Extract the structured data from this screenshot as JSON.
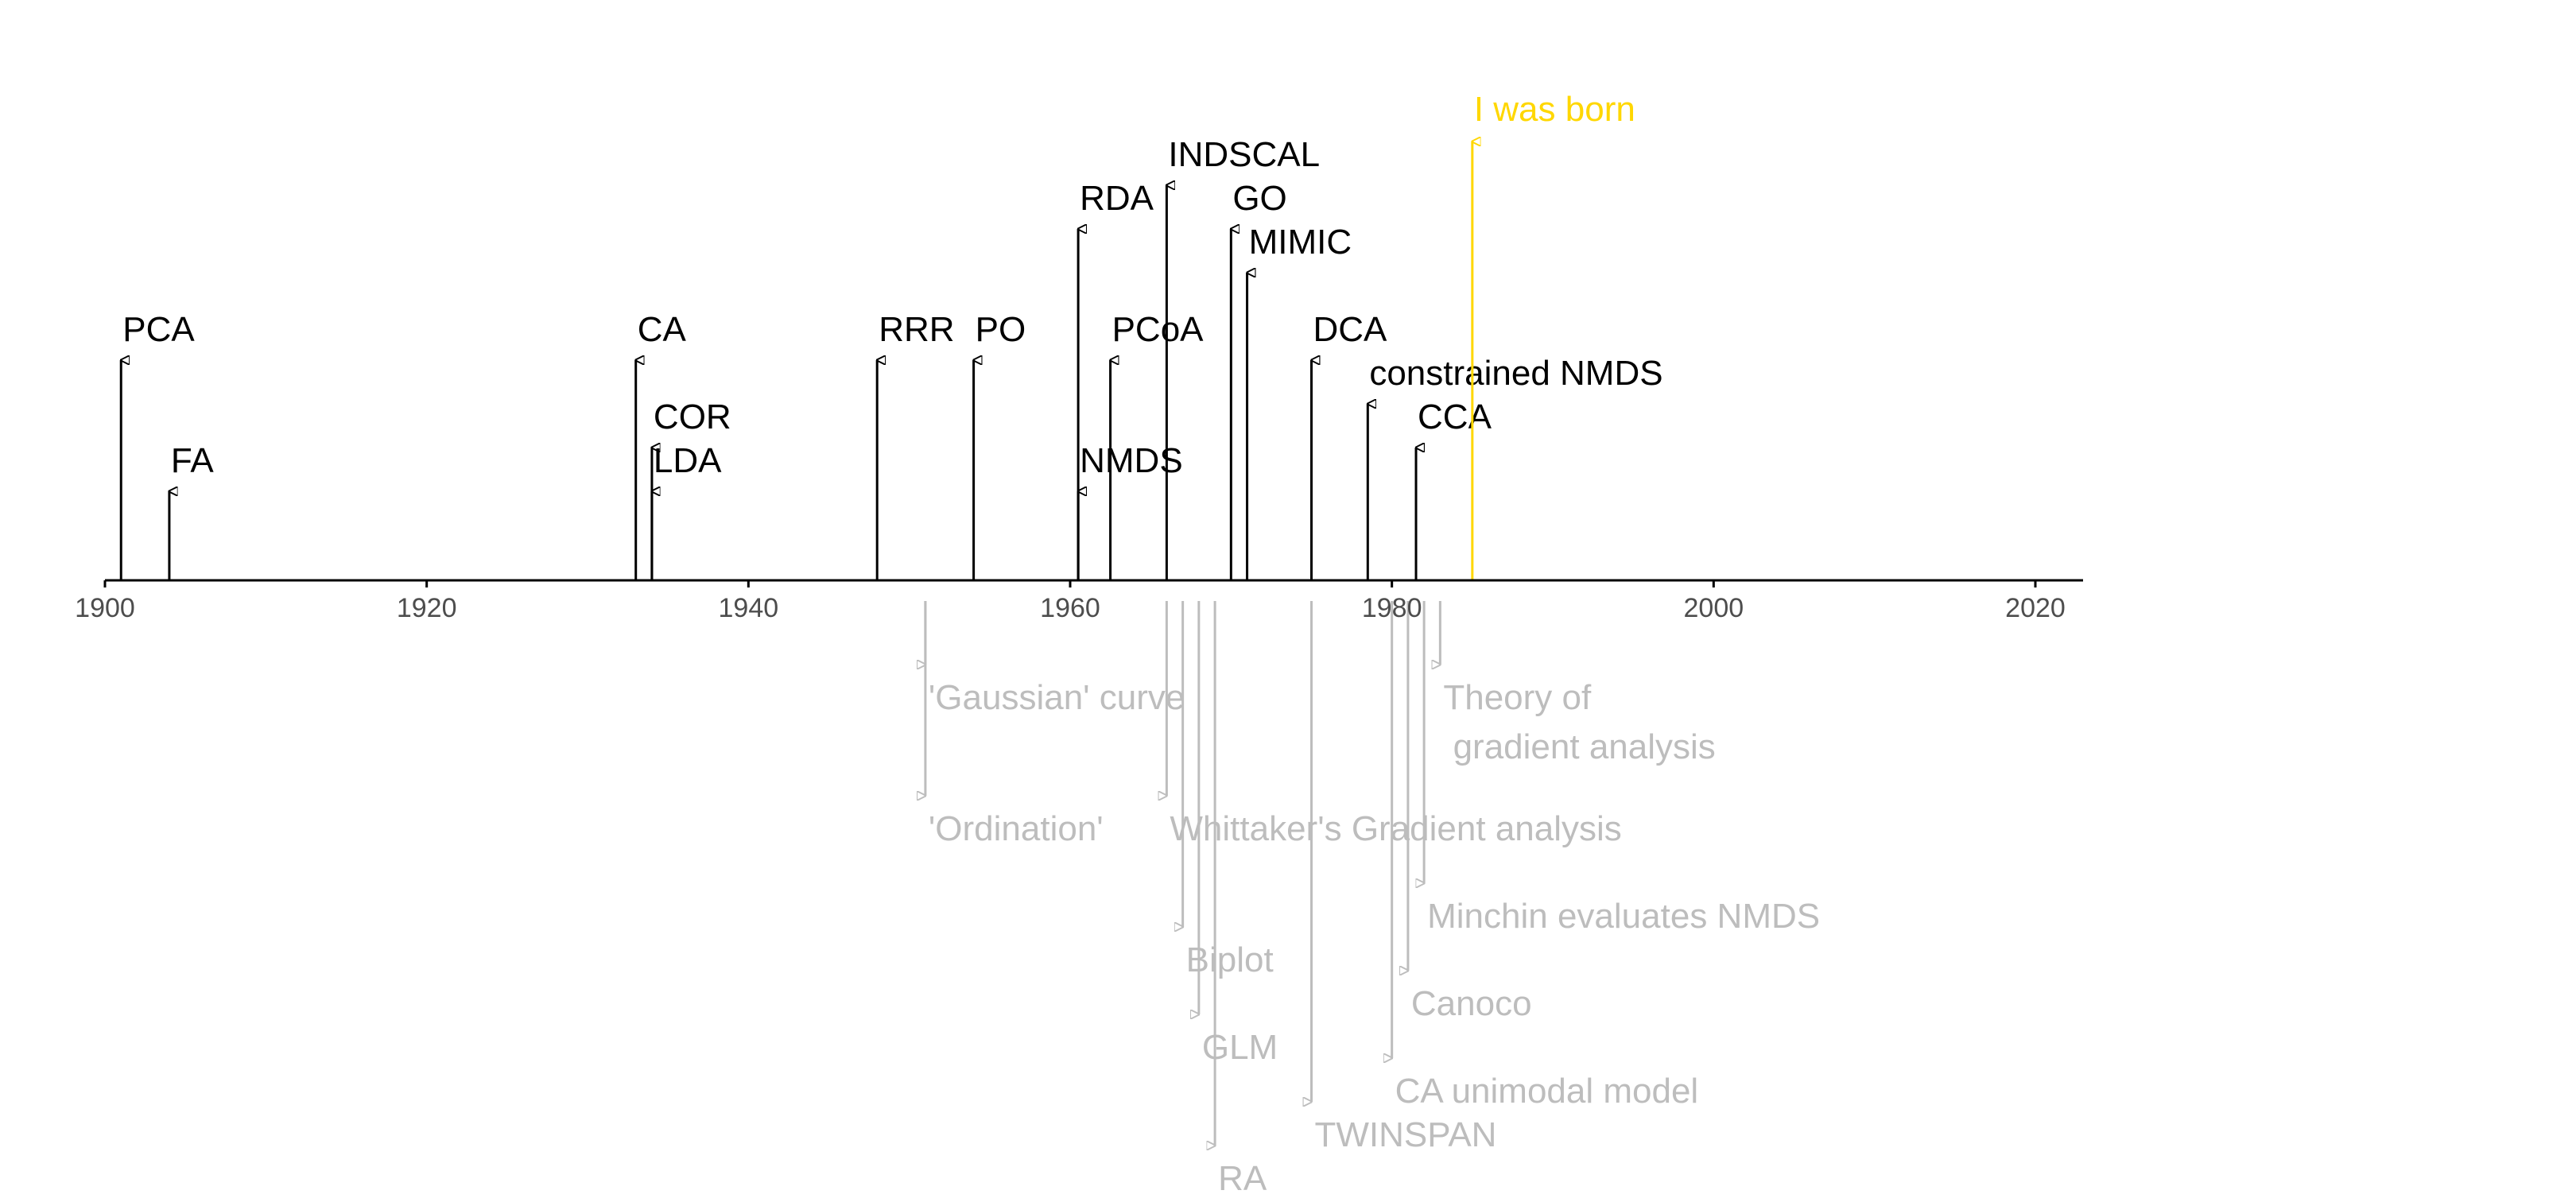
{
  "chart_data": {
    "type": "timeline",
    "x_range": [
      1898.5,
      2023
    ],
    "x_ticks": [
      1900,
      1920,
      1940,
      1960,
      1980,
      2000,
      2020
    ],
    "colors": {
      "methods": "#000000",
      "events": "#bdbdbd",
      "highlight": "#ffd700",
      "axis": "#000000",
      "tick_labels": "#4d4d4d"
    },
    "methods": [
      {
        "label": "PCA",
        "year": 1901,
        "level": 5
      },
      {
        "label": "FA",
        "year": 1904,
        "level": 2
      },
      {
        "label": "CA",
        "year": 1933,
        "level": 5
      },
      {
        "label": "COR",
        "year": 1934,
        "level": 3
      },
      {
        "label": "LDA",
        "year": 1934,
        "level": 2
      },
      {
        "label": "RRR",
        "year": 1948,
        "level": 5
      },
      {
        "label": "PO",
        "year": 1954,
        "level": 5
      },
      {
        "label": "RDA",
        "year": 1960.5,
        "level": 8
      },
      {
        "label": "NMDS",
        "year": 1960.5,
        "level": 2
      },
      {
        "label": "PCoA",
        "year": 1962.5,
        "level": 5
      },
      {
        "label": "INDSCAL",
        "year": 1966,
        "level": 9
      },
      {
        "label": "GO",
        "year": 1970,
        "level": 8
      },
      {
        "label": "MIMIC",
        "year": 1971,
        "level": 7
      },
      {
        "label": "DCA",
        "year": 1975,
        "level": 5
      },
      {
        "label": "constrained NMDS",
        "year": 1978.5,
        "level": 4
      },
      {
        "label": "CCA",
        "year": 1981.5,
        "level": 3
      }
    ],
    "highlight": {
      "label": "I was born",
      "year": 1985,
      "level": 10
    },
    "events": [
      {
        "label": "'Gaussian' curve",
        "year": 1951,
        "depth": 2
      },
      {
        "label": "'Ordination'",
        "year": 1951,
        "depth": 5
      },
      {
        "label": "Theory of\n gradient analysis",
        "year": 1983,
        "depth": 2
      },
      {
        "label": "Whittaker's Gradient analysis",
        "year": 1966,
        "depth": 5
      },
      {
        "label": "Minchin evaluates NMDS",
        "year": 1982,
        "depth": 7
      },
      {
        "label": "Biplot",
        "year": 1967,
        "depth": 8
      },
      {
        "label": "Canoco",
        "year": 1981,
        "depth": 9
      },
      {
        "label": "GLM",
        "year": 1968,
        "depth": 10
      },
      {
        "label": "CA unimodal model",
        "year": 1980,
        "depth": 11
      },
      {
        "label": "TWINSPAN",
        "year": 1975,
        "depth": 12
      },
      {
        "label": "RA",
        "year": 1969,
        "depth": 13
      }
    ]
  }
}
